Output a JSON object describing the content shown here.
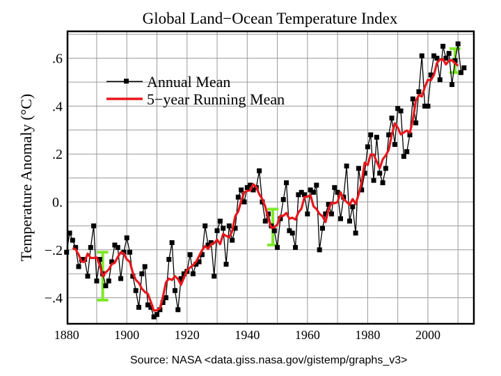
{
  "chart_data": {
    "type": "line",
    "title": "Global Land−Ocean Temperature Index",
    "ylabel": "Temperature Anomaly (°C)",
    "xlabel": "",
    "xlim": [
      1880,
      2015
    ],
    "ylim": [
      -0.51,
      0.71
    ],
    "grid": true,
    "legend_placement": "upper-left",
    "x_ticks": [
      1880,
      1900,
      1920,
      1940,
      1960,
      1980,
      2000
    ],
    "x_tick_labels": [
      "1880",
      "1900",
      "1920",
      "1940",
      "1960",
      "1980",
      "2000"
    ],
    "y_ticks": [
      0.6,
      0.4,
      0.2,
      0,
      -0.2,
      -0.4
    ],
    "y_tick_labels": [
      ".6",
      ".4",
      ".2",
      "0.",
      "−.2",
      "−.4"
    ],
    "x": [
      1880,
      1881,
      1882,
      1883,
      1884,
      1885,
      1886,
      1887,
      1888,
      1889,
      1890,
      1891,
      1892,
      1893,
      1894,
      1895,
      1896,
      1897,
      1898,
      1899,
      1900,
      1901,
      1902,
      1903,
      1904,
      1905,
      1906,
      1907,
      1908,
      1909,
      1910,
      1911,
      1912,
      1913,
      1914,
      1915,
      1916,
      1917,
      1918,
      1919,
      1920,
      1921,
      1922,
      1923,
      1924,
      1925,
      1926,
      1927,
      1928,
      1929,
      1930,
      1931,
      1932,
      1933,
      1934,
      1935,
      1936,
      1937,
      1938,
      1939,
      1940,
      1941,
      1942,
      1943,
      1944,
      1945,
      1946,
      1947,
      1948,
      1949,
      1950,
      1951,
      1952,
      1953,
      1954,
      1955,
      1956,
      1957,
      1958,
      1959,
      1960,
      1961,
      1962,
      1963,
      1964,
      1965,
      1966,
      1967,
      1968,
      1969,
      1970,
      1971,
      1972,
      1973,
      1974,
      1975,
      1976,
      1977,
      1978,
      1979,
      1980,
      1981,
      1982,
      1983,
      1984,
      1985,
      1986,
      1987,
      1988,
      1989,
      1990,
      1991,
      1992,
      1993,
      1994,
      1995,
      1996,
      1997,
      1998,
      1999,
      2000,
      2001,
      2002,
      2003,
      2004,
      2005,
      2006,
      2007,
      2008,
      2009,
      2010,
      2011,
      2012
    ],
    "series": [
      {
        "name": "Annual Mean",
        "color": "#000000",
        "marker": "square",
        "values": [
          -0.21,
          -0.13,
          -0.16,
          -0.19,
          -0.27,
          -0.24,
          -0.24,
          -0.31,
          -0.19,
          -0.1,
          -0.33,
          -0.24,
          -0.3,
          -0.35,
          -0.33,
          -0.25,
          -0.18,
          -0.19,
          -0.32,
          -0.21,
          -0.15,
          -0.21,
          -0.31,
          -0.37,
          -0.44,
          -0.3,
          -0.27,
          -0.43,
          -0.44,
          -0.48,
          -0.47,
          -0.45,
          -0.42,
          -0.4,
          -0.24,
          -0.17,
          -0.37,
          -0.45,
          -0.32,
          -0.3,
          -0.29,
          -0.22,
          -0.3,
          -0.26,
          -0.25,
          -0.22,
          -0.1,
          -0.18,
          -0.17,
          -0.31,
          -0.12,
          -0.08,
          -0.11,
          -0.26,
          -0.1,
          -0.16,
          -0.11,
          0.02,
          0.05,
          0.0,
          0.06,
          0.07,
          0.05,
          0.06,
          0.13,
          0.0,
          -0.08,
          -0.05,
          -0.1,
          -0.12,
          -0.19,
          -0.07,
          0.01,
          0.08,
          -0.12,
          -0.13,
          -0.19,
          0.03,
          0.04,
          0.03,
          -0.05,
          0.05,
          0.04,
          0.07,
          -0.2,
          -0.11,
          -0.05,
          -0.01,
          -0.05,
          0.06,
          0.04,
          -0.07,
          0.02,
          0.15,
          -0.08,
          -0.02,
          -0.13,
          0.14,
          0.05,
          0.12,
          0.23,
          0.28,
          0.09,
          0.27,
          0.12,
          0.08,
          0.14,
          0.28,
          0.35,
          0.24,
          0.39,
          0.38,
          0.19,
          0.21,
          0.28,
          0.43,
          0.33,
          0.46,
          0.61,
          0.4,
          0.4,
          0.53,
          0.61,
          0.6,
          0.51,
          0.65,
          0.6,
          0.62,
          0.49,
          0.59,
          0.66,
          0.54,
          0.56
        ]
      },
      {
        "name": "5−year Running Mean",
        "color": "#e8161b",
        "window": 5
      }
    ],
    "uncertainty_bars": {
      "color": "#7ee82a",
      "bars": [
        {
          "x": 1892,
          "low": -0.41,
          "high": -0.21
        },
        {
          "x": 1948.5,
          "low": -0.18,
          "high": -0.03
        },
        {
          "x": 2009,
          "low": 0.54,
          "high": 0.64
        }
      ]
    }
  },
  "footer": {
    "source": "Source: NASA <data.giss.nasa.gov/gistemp/graphs_v3>"
  }
}
